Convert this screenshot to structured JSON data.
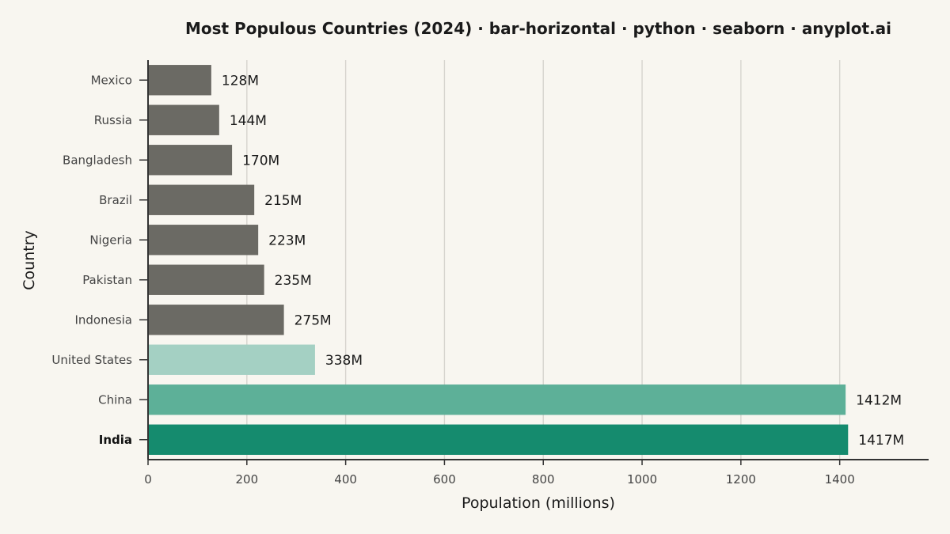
{
  "chart_data": {
    "type": "bar",
    "orientation": "horizontal",
    "title": "Most Populous Countries (2024) · bar-horizontal · python · seaborn · anyplot.ai",
    "xlabel": "Population (millions)",
    "ylabel": "Country",
    "categories": [
      "Mexico",
      "Russia",
      "Bangladesh",
      "Brazil",
      "Nigeria",
      "Pakistan",
      "Indonesia",
      "United States",
      "China",
      "India"
    ],
    "values": [
      128,
      144,
      170,
      215,
      223,
      235,
      275,
      338,
      1412,
      1417
    ],
    "value_labels": [
      "128M",
      "144M",
      "170M",
      "215M",
      "223M",
      "235M",
      "275M",
      "338M",
      "1412M",
      "1417M"
    ],
    "bar_colors": [
      "#6B6A64",
      "#6B6A64",
      "#6B6A64",
      "#6B6A64",
      "#6B6A64",
      "#6B6A64",
      "#6B6A64",
      "#A4D0C3",
      "#5DB098",
      "#158B6E"
    ],
    "highlight_category": "India",
    "xlim": [
      0,
      1580
    ],
    "xticks": [
      0,
      200,
      400,
      600,
      800,
      1000,
      1200,
      1400
    ],
    "grid": "vertical",
    "background": "#F8F6F0",
    "grid_color": "#D6D4CE",
    "axis_color": "#333333"
  }
}
